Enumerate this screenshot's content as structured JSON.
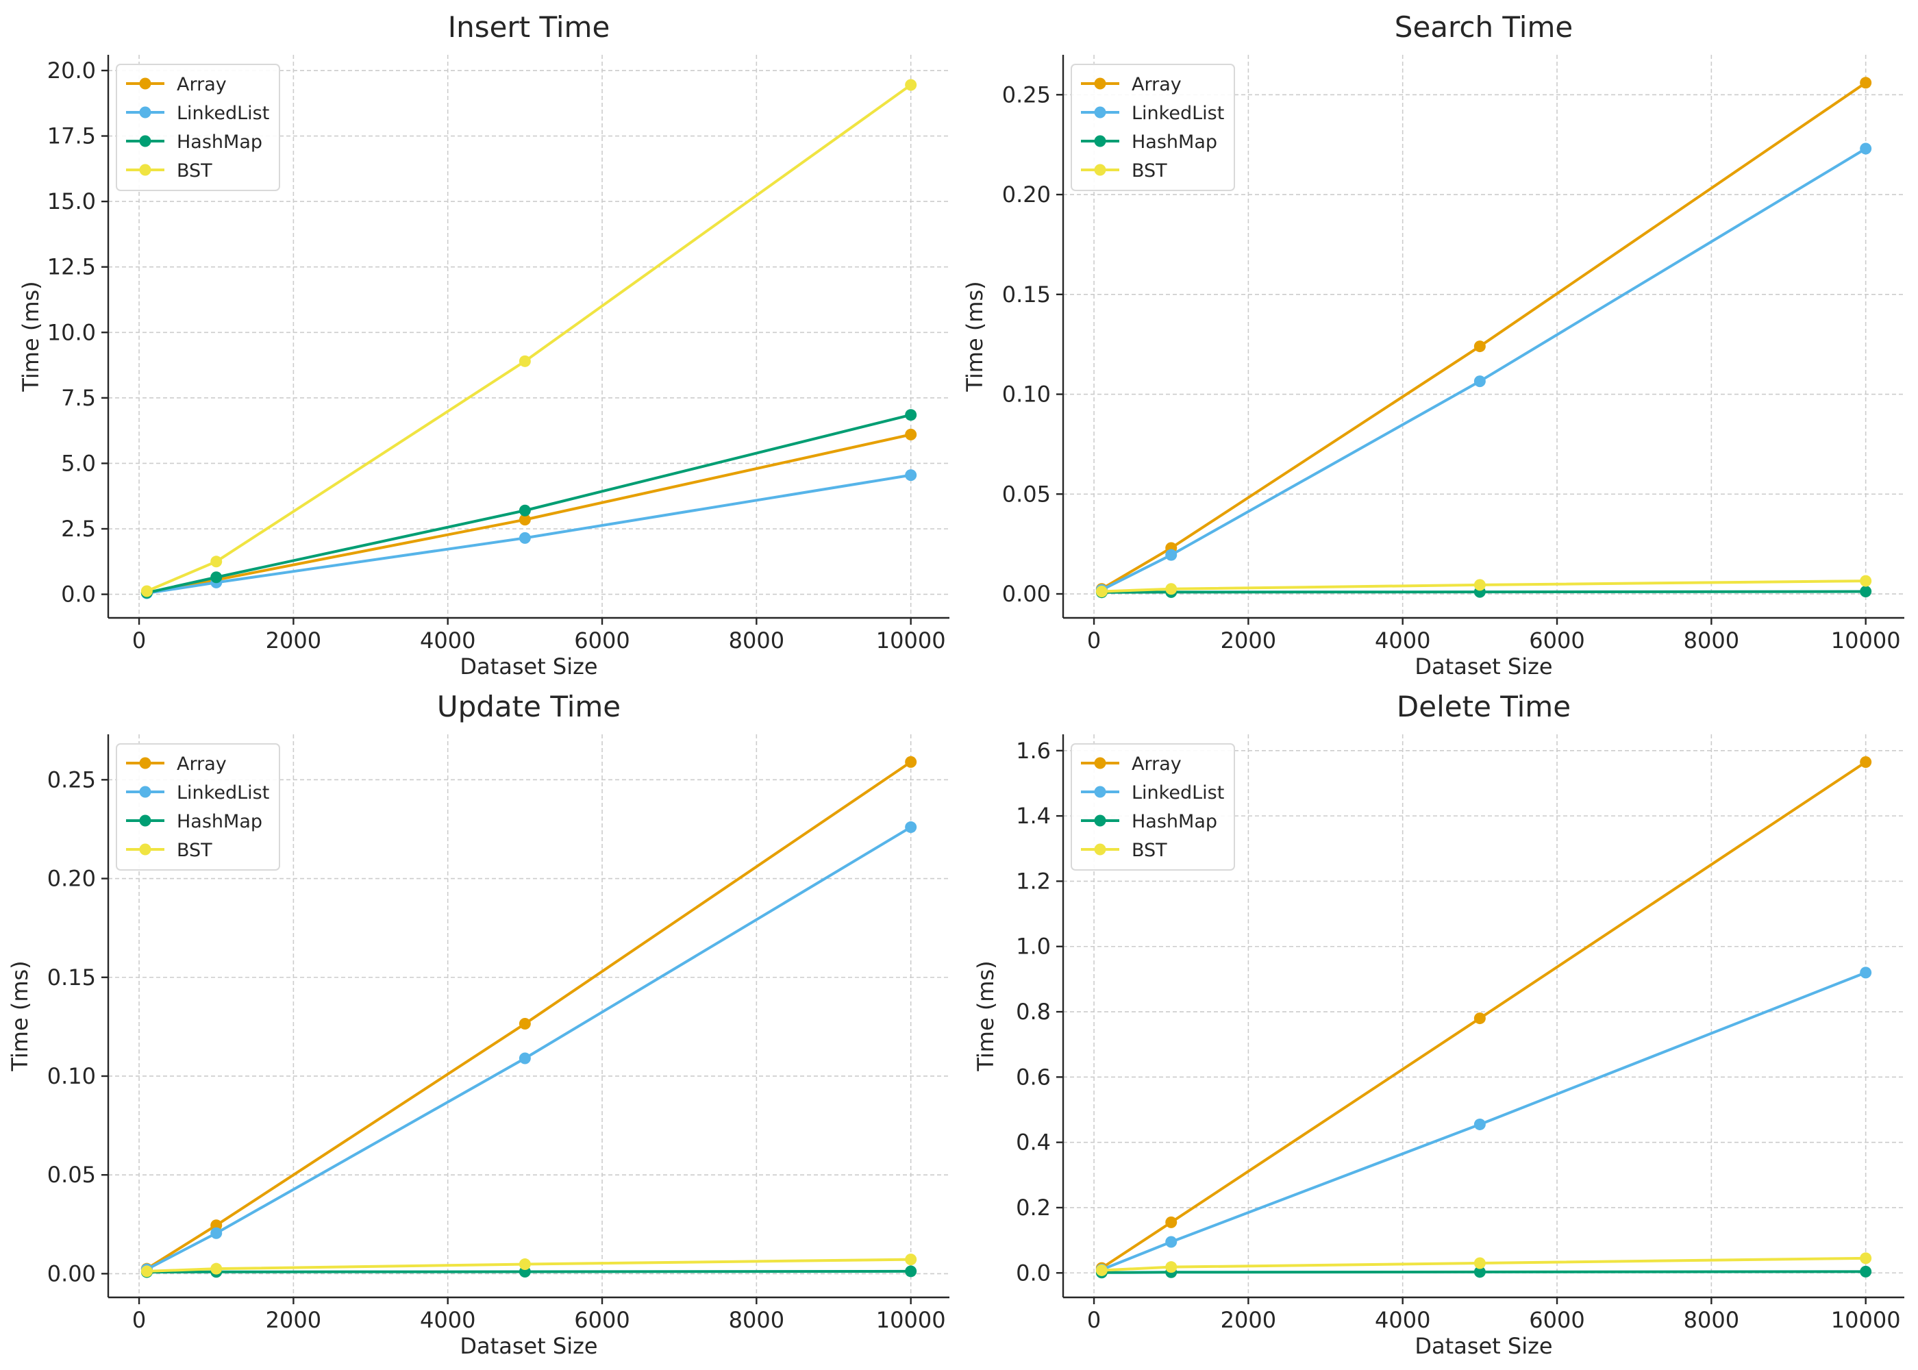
{
  "chart_data": [
    {
      "type": "line",
      "title": "Insert Time",
      "xlabel": "Dataset Size",
      "ylabel": "Time (ms)",
      "x": [
        100,
        1000,
        5000,
        10000
      ],
      "xlim": [
        -400,
        10500
      ],
      "ylim": [
        -0.9,
        20.6
      ],
      "xticks": [
        0,
        2000,
        4000,
        6000,
        8000,
        10000
      ],
      "xtick_labels": [
        "0",
        "2000",
        "4000",
        "6000",
        "8000",
        "10000"
      ],
      "yticks": [
        0,
        2.5,
        5,
        7.5,
        10,
        12.5,
        15,
        17.5,
        20
      ],
      "ytick_labels": [
        "0.0",
        "2.5",
        "5.0",
        "7.5",
        "10.0",
        "12.5",
        "15.0",
        "17.5",
        "20.0"
      ],
      "grid": true,
      "legend": "upper-left",
      "series": [
        {
          "name": "Array",
          "color": "#E69F00",
          "values": [
            0.05,
            0.55,
            2.85,
            6.1
          ]
        },
        {
          "name": "LinkedList",
          "color": "#56B4E9",
          "values": [
            0.04,
            0.45,
            2.15,
            4.55
          ]
        },
        {
          "name": "HashMap",
          "color": "#009E73",
          "values": [
            0.06,
            0.65,
            3.2,
            6.85
          ]
        },
        {
          "name": "BST",
          "color": "#F0E442",
          "values": [
            0.12,
            1.25,
            8.9,
            19.45
          ]
        }
      ]
    },
    {
      "type": "line",
      "title": "Search Time",
      "xlabel": "Dataset Size",
      "ylabel": "Time (ms)",
      "x": [
        100,
        1000,
        5000,
        10000
      ],
      "xlim": [
        -400,
        10500
      ],
      "ylim": [
        -0.012,
        0.27
      ],
      "xticks": [
        0,
        2000,
        4000,
        6000,
        8000,
        10000
      ],
      "xtick_labels": [
        "0",
        "2000",
        "4000",
        "6000",
        "8000",
        "10000"
      ],
      "yticks": [
        0,
        0.05,
        0.1,
        0.15,
        0.2,
        0.25
      ],
      "ytick_labels": [
        "0.00",
        "0.05",
        "0.10",
        "0.15",
        "0.20",
        "0.25"
      ],
      "grid": true,
      "legend": "upper-left",
      "series": [
        {
          "name": "Array",
          "color": "#E69F00",
          "values": [
            0.0025,
            0.023,
            0.124,
            0.256
          ]
        },
        {
          "name": "LinkedList",
          "color": "#56B4E9",
          "values": [
            0.002,
            0.0195,
            0.1065,
            0.223
          ]
        },
        {
          "name": "HashMap",
          "color": "#009E73",
          "values": [
            0.0008,
            0.0009,
            0.001,
            0.0012
          ]
        },
        {
          "name": "BST",
          "color": "#F0E442",
          "values": [
            0.0012,
            0.0025,
            0.0045,
            0.0065
          ]
        }
      ]
    },
    {
      "type": "line",
      "title": "Update Time",
      "xlabel": "Dataset Size",
      "ylabel": "Time (ms)",
      "x": [
        100,
        1000,
        5000,
        10000
      ],
      "xlim": [
        -400,
        10500
      ],
      "ylim": [
        -0.012,
        0.273
      ],
      "xticks": [
        0,
        2000,
        4000,
        6000,
        8000,
        10000
      ],
      "xtick_labels": [
        "0",
        "2000",
        "4000",
        "6000",
        "8000",
        "10000"
      ],
      "yticks": [
        0,
        0.05,
        0.1,
        0.15,
        0.2,
        0.25
      ],
      "ytick_labels": [
        "0.00",
        "0.05",
        "0.10",
        "0.15",
        "0.20",
        "0.25"
      ],
      "grid": true,
      "legend": "upper-left",
      "series": [
        {
          "name": "Array",
          "color": "#E69F00",
          "values": [
            0.0025,
            0.0245,
            0.1265,
            0.259
          ]
        },
        {
          "name": "LinkedList",
          "color": "#56B4E9",
          "values": [
            0.0022,
            0.0205,
            0.109,
            0.226
          ]
        },
        {
          "name": "HashMap",
          "color": "#009E73",
          "values": [
            0.0008,
            0.0009,
            0.001,
            0.0012
          ]
        },
        {
          "name": "BST",
          "color": "#F0E442",
          "values": [
            0.0012,
            0.0025,
            0.0048,
            0.0072
          ]
        }
      ]
    },
    {
      "type": "line",
      "title": "Delete Time",
      "xlabel": "Dataset Size",
      "ylabel": "Time (ms)",
      "x": [
        100,
        1000,
        5000,
        10000
      ],
      "xlim": [
        -400,
        10500
      ],
      "ylim": [
        -0.075,
        1.65
      ],
      "xticks": [
        0,
        2000,
        4000,
        6000,
        8000,
        10000
      ],
      "xtick_labels": [
        "0",
        "2000",
        "4000",
        "6000",
        "8000",
        "10000"
      ],
      "yticks": [
        0,
        0.2,
        0.4,
        0.6,
        0.8,
        1.0,
        1.2,
        1.4,
        1.6
      ],
      "ytick_labels": [
        "0.0",
        "0.2",
        "0.4",
        "0.6",
        "0.8",
        "1.0",
        "1.2",
        "1.4",
        "1.6"
      ],
      "grid": true,
      "legend": "upper-left",
      "series": [
        {
          "name": "Array",
          "color": "#E69F00",
          "values": [
            0.015,
            0.155,
            0.78,
            1.565
          ]
        },
        {
          "name": "LinkedList",
          "color": "#56B4E9",
          "values": [
            0.01,
            0.095,
            0.455,
            0.92
          ]
        },
        {
          "name": "HashMap",
          "color": "#009E73",
          "values": [
            0.001,
            0.002,
            0.003,
            0.004
          ]
        },
        {
          "name": "BST",
          "color": "#F0E442",
          "values": [
            0.008,
            0.018,
            0.03,
            0.045
          ]
        }
      ]
    }
  ]
}
